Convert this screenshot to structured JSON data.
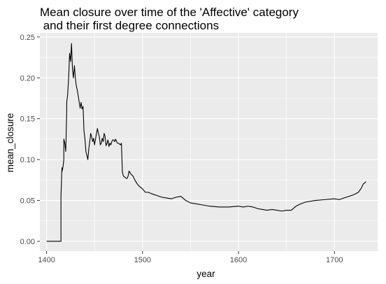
{
  "chart_data": {
    "type": "line",
    "title_lines": [
      "Mean closure over time of the 'Affective' category",
      " and their first degree connections"
    ],
    "xlabel": "year",
    "ylabel": "mean_closure",
    "xlim": [
      1393,
      1745
    ],
    "ylim": [
      -0.012,
      0.255
    ],
    "xticks": [
      1400,
      1500,
      1600,
      1700
    ],
    "yticks": [
      0.0,
      0.05,
      0.1,
      0.15,
      0.2,
      0.25
    ],
    "ytick_labels": [
      "0.00",
      "0.05",
      "0.10",
      "0.15",
      "0.20",
      "0.25"
    ],
    "grid": true,
    "background": "#ebebeb",
    "gridline_color": "#ffffff",
    "line_color": "#000000",
    "series": [
      {
        "x": [
          1400,
          1414,
          1415,
          1415,
          1416,
          1416,
          1417,
          1418,
          1418,
          1419,
          1420,
          1421,
          1421,
          1422,
          1423,
          1424,
          1425,
          1426,
          1427,
          1428,
          1429,
          1430,
          1431,
          1432,
          1433,
          1434,
          1435,
          1436,
          1437,
          1438,
          1439,
          1440,
          1441,
          1442,
          1443,
          1444,
          1445,
          1446,
          1447,
          1448,
          1449,
          1450,
          1451,
          1452,
          1453,
          1454,
          1455,
          1456,
          1457,
          1458,
          1459,
          1460,
          1461,
          1462,
          1463,
          1464,
          1465,
          1466,
          1467,
          1468,
          1469,
          1470,
          1471,
          1472,
          1473,
          1474,
          1475,
          1476,
          1477,
          1478,
          1479,
          1480,
          1481,
          1482,
          1483,
          1484,
          1485,
          1486,
          1487,
          1488,
          1490,
          1492,
          1494,
          1496,
          1498,
          1500,
          1503,
          1506,
          1510,
          1515,
          1520,
          1525,
          1530,
          1535,
          1540,
          1545,
          1550,
          1555,
          1560,
          1570,
          1580,
          1590,
          1600,
          1605,
          1610,
          1615,
          1620,
          1625,
          1630,
          1635,
          1640,
          1645,
          1650,
          1655,
          1660,
          1665,
          1670,
          1680,
          1690,
          1700,
          1705,
          1710,
          1715,
          1720,
          1725,
          1728,
          1730,
          1733
        ],
        "y": [
          0.0,
          0.0,
          0.0,
          0.055,
          0.09,
          0.085,
          0.09,
          0.1,
          0.125,
          0.12,
          0.11,
          0.16,
          0.17,
          0.18,
          0.2,
          0.23,
          0.22,
          0.242,
          0.21,
          0.2,
          0.215,
          0.2,
          0.19,
          0.185,
          0.178,
          0.17,
          0.163,
          0.17,
          0.162,
          0.165,
          0.135,
          0.125,
          0.11,
          0.105,
          0.1,
          0.113,
          0.122,
          0.132,
          0.128,
          0.122,
          0.126,
          0.118,
          0.125,
          0.132,
          0.138,
          0.132,
          0.128,
          0.118,
          0.12,
          0.126,
          0.122,
          0.132,
          0.128,
          0.117,
          0.12,
          0.124,
          0.116,
          0.12,
          0.118,
          0.122,
          0.124,
          0.124,
          0.122,
          0.125,
          0.122,
          0.12,
          0.12,
          0.119,
          0.118,
          0.12,
          0.085,
          0.08,
          0.079,
          0.078,
          0.077,
          0.077,
          0.08,
          0.086,
          0.084,
          0.082,
          0.08,
          0.075,
          0.071,
          0.068,
          0.066,
          0.064,
          0.06,
          0.06,
          0.058,
          0.056,
          0.054,
          0.053,
          0.052,
          0.054,
          0.055,
          0.05,
          0.047,
          0.046,
          0.045,
          0.043,
          0.042,
          0.042,
          0.043,
          0.042,
          0.043,
          0.042,
          0.04,
          0.039,
          0.038,
          0.039,
          0.038,
          0.037,
          0.038,
          0.038,
          0.043,
          0.046,
          0.048,
          0.05,
          0.051,
          0.052,
          0.051,
          0.053,
          0.055,
          0.057,
          0.06,
          0.065,
          0.07,
          0.073
        ]
      }
    ]
  }
}
